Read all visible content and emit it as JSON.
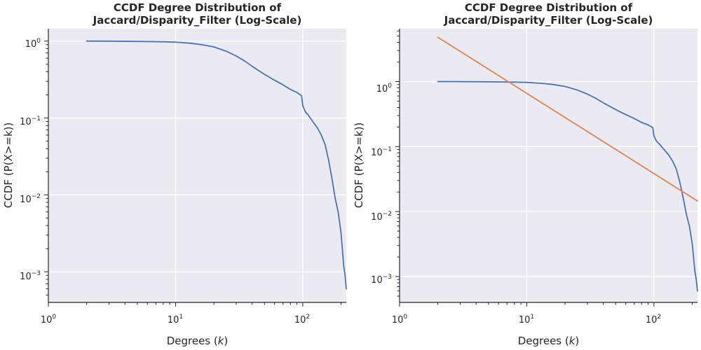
{
  "chart_data": [
    {
      "type": "line",
      "title_lines": [
        "CCDF Degree Distribution of",
        "Jaccard/Disparity_Filter (Log-Scale)"
      ],
      "xlabel": "Degrees (k)",
      "ylabel": "CCDF (P(X>=k))",
      "xscale": "log",
      "yscale": "log",
      "xlim": [
        1,
        220
      ],
      "ylim": [
        0.0004,
        1.45
      ],
      "x_ticks": [
        {
          "value": 1,
          "mantissa": "10",
          "exponent": "0"
        },
        {
          "value": 10,
          "mantissa": "10",
          "exponent": "1"
        },
        {
          "value": 100,
          "mantissa": "10",
          "exponent": "2"
        }
      ],
      "y_ticks": [
        {
          "value": 0.001,
          "mantissa": "10",
          "exponent": "−3"
        },
        {
          "value": 0.01,
          "mantissa": "10",
          "exponent": "−2"
        },
        {
          "value": 0.1,
          "mantissa": "10",
          "exponent": "−1"
        },
        {
          "value": 1,
          "mantissa": "10",
          "exponent": "0"
        }
      ],
      "grid": true,
      "series": [
        {
          "color": "#4c72b0",
          "x": [
            2,
            3,
            5,
            8,
            10,
            13,
            16,
            20,
            25,
            30,
            35,
            40,
            50,
            60,
            70,
            80,
            90,
            98,
            100,
            105,
            110,
            120,
            130,
            140,
            150,
            160,
            170,
            180,
            190,
            200,
            210,
            215,
            220
          ],
          "y": [
            1.0,
            0.998,
            0.99,
            0.98,
            0.97,
            0.94,
            0.9,
            0.84,
            0.74,
            0.64,
            0.55,
            0.47,
            0.37,
            0.31,
            0.27,
            0.235,
            0.215,
            0.195,
            0.145,
            0.12,
            0.11,
            0.09,
            0.075,
            0.06,
            0.045,
            0.028,
            0.016,
            0.009,
            0.006,
            0.0032,
            0.0012,
            0.0009,
            0.0006
          ]
        }
      ]
    },
    {
      "type": "line",
      "title_lines": [
        "CCDF Degree Distribution of",
        "Jaccard/Disparity_Filter (Log-Scale)"
      ],
      "xlabel": "Degrees (k)",
      "ylabel": "CCDF (P(X>=k))",
      "xscale": "log",
      "yscale": "log",
      "xlim": [
        1,
        220
      ],
      "ylim": [
        0.0004,
        6.5
      ],
      "x_ticks": [
        {
          "value": 1,
          "mantissa": "10",
          "exponent": "0"
        },
        {
          "value": 10,
          "mantissa": "10",
          "exponent": "1"
        },
        {
          "value": 100,
          "mantissa": "10",
          "exponent": "2"
        }
      ],
      "y_ticks": [
        {
          "value": 0.001,
          "mantissa": "10",
          "exponent": "−3"
        },
        {
          "value": 0.01,
          "mantissa": "10",
          "exponent": "−2"
        },
        {
          "value": 0.1,
          "mantissa": "10",
          "exponent": "−1"
        },
        {
          "value": 1,
          "mantissa": "10",
          "exponent": "0"
        }
      ],
      "grid": true,
      "series": [
        {
          "color": "#4c72b0",
          "x": [
            2,
            3,
            5,
            8,
            10,
            13,
            16,
            20,
            25,
            30,
            35,
            40,
            50,
            60,
            70,
            80,
            90,
            98,
            100,
            105,
            110,
            120,
            130,
            140,
            150,
            160,
            170,
            180,
            190,
            200,
            210,
            215,
            220
          ],
          "y": [
            1.0,
            0.998,
            0.99,
            0.98,
            0.97,
            0.94,
            0.9,
            0.84,
            0.74,
            0.64,
            0.55,
            0.47,
            0.37,
            0.31,
            0.27,
            0.235,
            0.215,
            0.195,
            0.145,
            0.12,
            0.11,
            0.09,
            0.075,
            0.06,
            0.045,
            0.028,
            0.016,
            0.009,
            0.006,
            0.0032,
            0.0012,
            0.0009,
            0.0006
          ]
        },
        {
          "color": "#dd8452",
          "x": [
            2,
            220
          ],
          "y": [
            4.8,
            0.0145
          ]
        }
      ]
    }
  ]
}
